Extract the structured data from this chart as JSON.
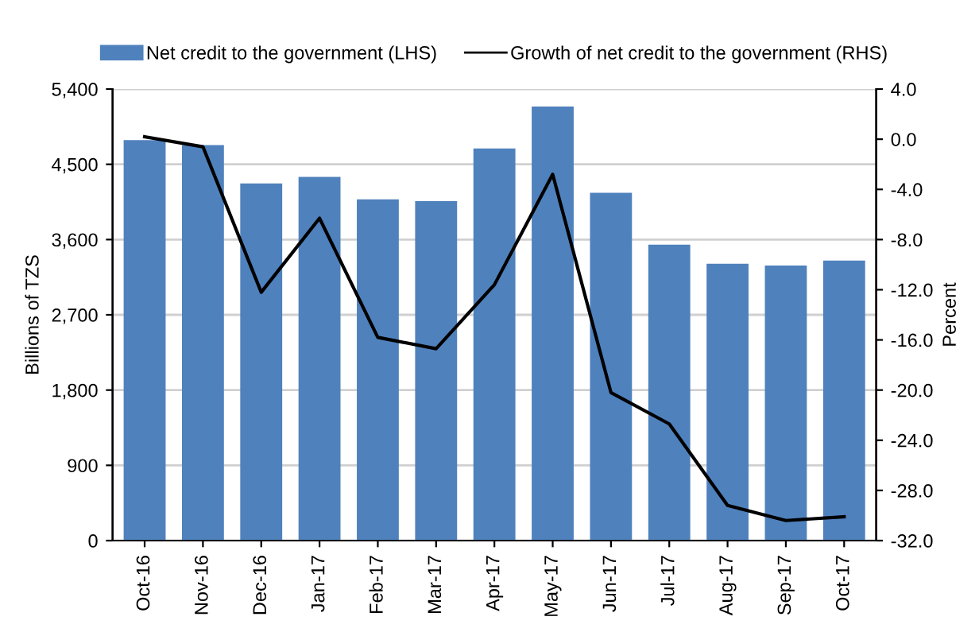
{
  "chart_data": {
    "type": "bar",
    "categories": [
      "Oct-16",
      "Nov-16",
      "Dec-16",
      "Jan-17",
      "Feb-17",
      "Mar-17",
      "Apr-17",
      "May-17",
      "Jun-17",
      "Jul-17",
      "Aug-17",
      "Sep-17",
      "Oct-17"
    ],
    "series": [
      {
        "name": "Net credit to the government (LHS)",
        "color": "#4f81bd",
        "values": [
          4790,
          4730,
          4270,
          4350,
          4080,
          4060,
          4690,
          5190,
          4160,
          3540,
          3310,
          3290,
          3350
        ]
      },
      {
        "name": "Growth of net credit to the government (RHS)",
        "type": "line",
        "axis": "y2",
        "color": "#000000",
        "values": [
          0.2,
          -0.6,
          -12.2,
          -6.3,
          -15.8,
          -16.7,
          -11.6,
          -2.8,
          -20.2,
          -22.7,
          -29.2,
          -30.4,
          -30.1
        ]
      }
    ],
    "ylabel": "Billions of TZS",
    "y2label": "Percent",
    "ylim": [
      0,
      5400
    ],
    "yticks": [
      {
        "value": 0,
        "label": "0"
      },
      {
        "value": 900,
        "label": "900"
      },
      {
        "value": 1800,
        "label": "1,800"
      },
      {
        "value": 2700,
        "label": "2,700"
      },
      {
        "value": 3600,
        "label": "3,600"
      },
      {
        "value": 4500,
        "label": "4,500"
      },
      {
        "value": 5400,
        "label": "5,400"
      }
    ],
    "y2lim": [
      -32,
      4
    ],
    "y2ticks": [
      {
        "value": -32,
        "label": "-32.0"
      },
      {
        "value": -28,
        "label": "-28.0"
      },
      {
        "value": -24,
        "label": "-24.0"
      },
      {
        "value": -20,
        "label": "-20.0"
      },
      {
        "value": -16,
        "label": "-16.0"
      },
      {
        "value": -12,
        "label": "-12.0"
      },
      {
        "value": -8,
        "label": "-8.0"
      },
      {
        "value": -4,
        "label": "-4.0"
      },
      {
        "value": 0,
        "label": "0.0"
      },
      {
        "value": 4,
        "label": "4.0"
      }
    ],
    "grid": "y",
    "legend": "top"
  }
}
